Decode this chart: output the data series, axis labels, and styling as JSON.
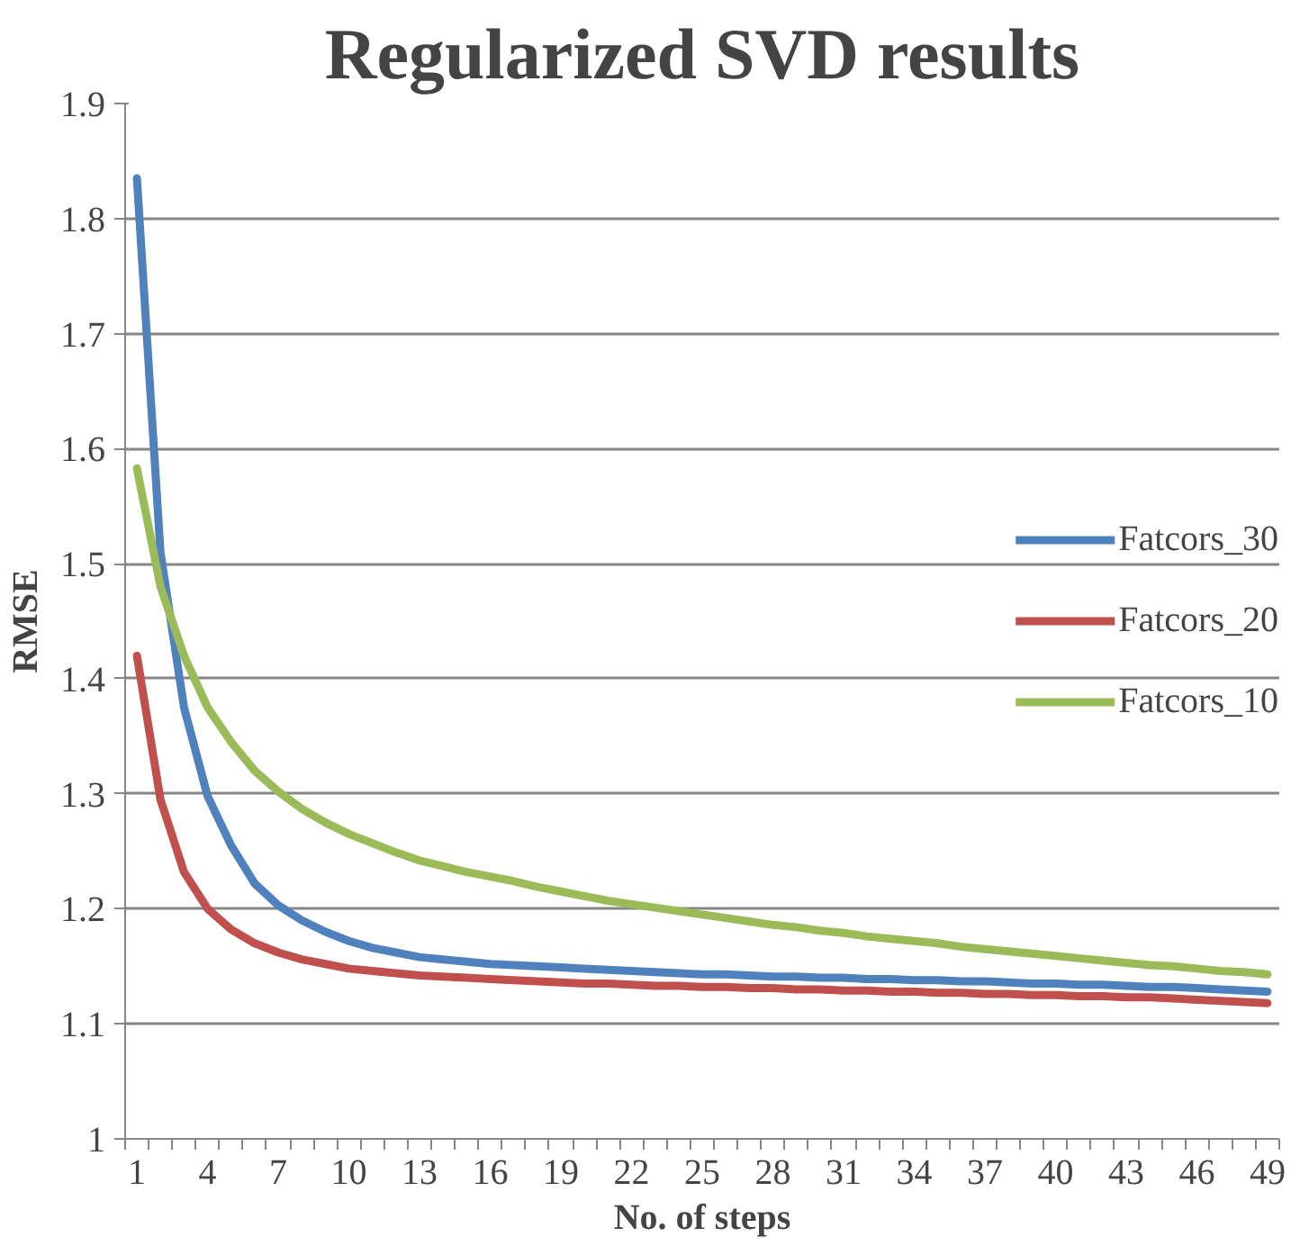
{
  "chart_data": {
    "type": "line",
    "title": "Regularized SVD results",
    "xlabel": "No. of steps",
    "ylabel": "RMSE",
    "categories": [
      "1",
      null,
      null,
      "4",
      null,
      null,
      "7",
      null,
      null,
      "10",
      null,
      null,
      "13",
      null,
      null,
      "16",
      null,
      null,
      "19",
      null,
      null,
      "22",
      null,
      null,
      "25",
      null,
      null,
      "28",
      null,
      null,
      "31",
      null,
      null,
      "34",
      null,
      null,
      "37",
      null,
      null,
      "40",
      null,
      null,
      "43",
      null,
      null,
      "46",
      null,
      null,
      "49"
    ],
    "ylim": [
      1,
      1.9
    ],
    "yticks": [
      1,
      1.1,
      1.2,
      1.3,
      1.4,
      1.5,
      1.6,
      1.7,
      1.8,
      1.9
    ],
    "grid": "y",
    "legend": "right",
    "line_style": "solid",
    "series": [
      {
        "name": "Fatcors_30",
        "color": "#4f81bd",
        "values": [
          1.835,
          1.51,
          1.375,
          1.298,
          1.255,
          1.222,
          1.203,
          1.19,
          1.18,
          1.172,
          1.166,
          1.162,
          1.158,
          1.156,
          1.154,
          1.152,
          1.151,
          1.15,
          1.149,
          1.148,
          1.147,
          1.146,
          1.145,
          1.144,
          1.143,
          1.143,
          1.142,
          1.141,
          1.141,
          1.14,
          1.14,
          1.139,
          1.139,
          1.138,
          1.138,
          1.137,
          1.137,
          1.136,
          1.135,
          1.135,
          1.134,
          1.134,
          1.133,
          1.132,
          1.132,
          1.131,
          1.13,
          1.129,
          1.128
        ]
      },
      {
        "name": "Fatcors_20",
        "color": "#c0504d",
        "values": [
          1.42,
          1.295,
          1.232,
          1.2,
          1.182,
          1.17,
          1.162,
          1.156,
          1.152,
          1.148,
          1.146,
          1.144,
          1.142,
          1.141,
          1.14,
          1.139,
          1.138,
          1.137,
          1.136,
          1.135,
          1.135,
          1.134,
          1.133,
          1.133,
          1.132,
          1.132,
          1.131,
          1.131,
          1.13,
          1.13,
          1.129,
          1.129,
          1.128,
          1.128,
          1.127,
          1.127,
          1.126,
          1.126,
          1.125,
          1.125,
          1.124,
          1.124,
          1.123,
          1.123,
          1.122,
          1.121,
          1.12,
          1.119,
          1.118
        ]
      },
      {
        "name": "Fatcors_10",
        "color": "#9bbb59",
        "values": [
          1.583,
          1.48,
          1.42,
          1.375,
          1.345,
          1.32,
          1.302,
          1.287,
          1.275,
          1.265,
          1.257,
          1.249,
          1.242,
          1.237,
          1.232,
          1.228,
          1.224,
          1.219,
          1.215,
          1.211,
          1.207,
          1.204,
          1.201,
          1.198,
          1.195,
          1.192,
          1.189,
          1.186,
          1.184,
          1.181,
          1.179,
          1.176,
          1.174,
          1.172,
          1.17,
          1.167,
          1.165,
          1.163,
          1.161,
          1.159,
          1.157,
          1.155,
          1.153,
          1.151,
          1.15,
          1.148,
          1.146,
          1.145,
          1.143
        ]
      }
    ]
  }
}
